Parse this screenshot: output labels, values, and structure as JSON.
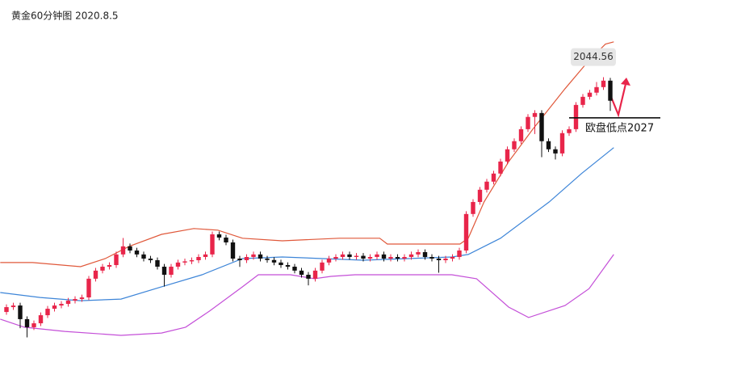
{
  "chart_data": {
    "type": "candlestick",
    "title": "黄金60分钟图 2020.8.5",
    "ylim": [
      1914,
      2078
    ],
    "up_color": "#e8254a",
    "down_color": "#111111",
    "open": [
      1943.0,
      1945.1,
      1945.8,
      1939.9,
      1936.4,
      1938.1,
      1941.6,
      1944.4,
      1945.8,
      1946.5,
      1947.9,
      1948.6,
      1949.3,
      1957.4,
      1960.9,
      1962.6,
      1963.3,
      1967.9,
      1971.4,
      1969.6,
      1967.9,
      1966.1,
      1965.4,
      1962.6,
      1959.1,
      1962.6,
      1964.4,
      1964.9,
      1965.4,
      1966.8,
      1967.9,
      1976.6,
      1975.2,
      1973.1,
      1966.1,
      1965.4,
      1966.8,
      1967.9,
      1966.1,
      1965.5,
      1964.4,
      1963.3,
      1962.6,
      1960.9,
      1959.1,
      1957.4,
      1960.9,
      1964.4,
      1966.1,
      1966.8,
      1967.9,
      1966.8,
      1967.3,
      1966.1,
      1966.8,
      1967.9,
      1966.1,
      1966.8,
      1966.1,
      1966.8,
      1967.9,
      1968.9,
      1966.8,
      1966.1,
      1965.4,
      1966.1,
      1966.8,
      1969.6,
      1985.4,
      1990.6,
      1995.9,
      1999.4,
      2002.9,
      2008.1,
      2013.4,
      2016.9,
      2022.1,
      2027.4,
      2029.1,
      2016.9,
      2013.4,
      2011.6,
      2020.4,
      2022.1,
      2032.6,
      2036.1,
      2037.9,
      2040.3,
      2043.1
    ],
    "high": [
      1946.3,
      1947.0,
      1947.0,
      1941.1,
      1939.3,
      1942.8,
      1945.6,
      1947.0,
      1947.7,
      1949.1,
      1949.8,
      1950.5,
      1958.6,
      1962.1,
      1963.8,
      1964.5,
      1969.1,
      1975.0,
      1972.6,
      1970.8,
      1969.1,
      1967.3,
      1966.6,
      1963.8,
      1963.8,
      1965.6,
      1966.1,
      1966.6,
      1968.0,
      1969.1,
      1977.8,
      1977.8,
      1976.4,
      1974.3,
      1967.3,
      1968.0,
      1969.1,
      1969.1,
      1967.3,
      1966.7,
      1965.6,
      1964.5,
      1963.8,
      1962.1,
      1960.3,
      1962.1,
      1965.6,
      1967.3,
      1968.0,
      1969.1,
      1969.1,
      1968.5,
      1968.5,
      1968.0,
      1969.1,
      1969.1,
      1968.0,
      1968.0,
      1968.0,
      1969.1,
      1970.1,
      1970.1,
      1968.0,
      1967.3,
      1967.3,
      1968.0,
      1970.8,
      1986.6,
      1991.8,
      1997.1,
      2000.6,
      2004.1,
      2009.3,
      2014.6,
      2018.1,
      2023.3,
      2028.6,
      2030.3,
      2030.3,
      2018.1,
      2014.6,
      2021.6,
      2023.3,
      2033.8,
      2037.3,
      2039.1,
      2042.5,
      2044.6,
      2044.3
    ],
    "low": [
      1941.8,
      1943.9,
      1936.0,
      1932.0,
      1935.2,
      1936.9,
      1940.4,
      1943.2,
      1944.6,
      1945.3,
      1946.7,
      1947.4,
      1948.1,
      1956.2,
      1959.7,
      1961.4,
      1962.1,
      1966.7,
      1968.4,
      1966.7,
      1964.9,
      1964.2,
      1961.4,
      1954.0,
      1957.9,
      1961.4,
      1963.2,
      1963.7,
      1964.2,
      1965.6,
      1966.7,
      1974.0,
      1971.9,
      1964.9,
      1962.5,
      1964.2,
      1965.6,
      1964.9,
      1964.3,
      1963.2,
      1962.1,
      1961.4,
      1959.7,
      1957.9,
      1954.5,
      1956.2,
      1959.7,
      1963.2,
      1964.9,
      1965.6,
      1965.6,
      1965.6,
      1964.9,
      1964.9,
      1965.6,
      1964.9,
      1964.9,
      1964.9,
      1964.9,
      1965.6,
      1966.7,
      1965.6,
      1964.9,
      1960.0,
      1964.2,
      1964.9,
      1965.6,
      1968.4,
      1984.2,
      1989.4,
      1994.7,
      1998.2,
      2001.7,
      2006.9,
      2012.2,
      2015.7,
      2020.9,
      2020.0,
      2010.0,
      2012.2,
      2009.0,
      2010.4,
      2019.2,
      2020.9,
      2031.4,
      2034.9,
      2036.7,
      2039.1,
      2030.0
    ],
    "close": [
      1945.1,
      1945.8,
      1939.9,
      1936.4,
      1938.1,
      1941.6,
      1944.4,
      1945.8,
      1946.5,
      1947.9,
      1948.6,
      1949.3,
      1957.4,
      1960.9,
      1962.6,
      1963.3,
      1967.9,
      1971.4,
      1969.6,
      1967.9,
      1966.1,
      1965.4,
      1962.6,
      1959.1,
      1962.6,
      1964.4,
      1964.9,
      1965.4,
      1966.8,
      1967.9,
      1976.6,
      1975.2,
      1973.1,
      1966.1,
      1965.4,
      1966.8,
      1967.9,
      1966.1,
      1965.5,
      1964.4,
      1963.3,
      1962.6,
      1960.9,
      1959.1,
      1957.4,
      1960.9,
      1964.4,
      1966.1,
      1966.8,
      1967.9,
      1966.8,
      1967.3,
      1966.1,
      1966.8,
      1967.9,
      1966.1,
      1966.8,
      1966.1,
      1966.8,
      1967.9,
      1968.9,
      1966.8,
      1966.1,
      1965.4,
      1966.1,
      1966.8,
      1969.6,
      1985.4,
      1990.6,
      1995.9,
      1999.4,
      2002.9,
      2008.1,
      2013.4,
      2016.9,
      2022.1,
      2027.4,
      2029.1,
      2016.9,
      2013.4,
      2011.6,
      2020.4,
      2022.1,
      2032.6,
      2036.1,
      2037.9,
      2040.3,
      2043.1,
      2034.4
    ],
    "bands": [
      {
        "color": "#e0583a",
        "x": [
          -0.9,
          3.8,
          10.8,
          14.4,
          17.9,
          22.6,
          27.3,
          30.8,
          34.4,
          40.2,
          48.5,
          54.4,
          55.5,
          66.1,
          67.3,
          69.6,
          73.2,
          76.7,
          81.4,
          84.9,
          87.3,
          88.5
        ],
        "values": [
          1964.4,
          1964.4,
          1962.6,
          1966.1,
          1971.4,
          1976.6,
          1979.1,
          1978.4,
          1974.9,
          1973.8,
          1974.9,
          1974.9,
          1972.4,
          1972.4,
          1974.9,
          1990.6,
          2008.1,
          2022.1,
          2039.6,
          2051.9,
          2058.9,
          2059.9
        ]
      },
      {
        "color": "#3d85d8",
        "x": [
          -0.9,
          4.9,
          10.8,
          16.7,
          22.6,
          28.5,
          34.4,
          40.2,
          46.1,
          52.0,
          64.9,
          67.3,
          72.0,
          79.1,
          83.8,
          88.5
        ],
        "values": [
          1951.4,
          1949.3,
          1947.9,
          1948.6,
          1953.9,
          1959.1,
          1966.1,
          1966.8,
          1966.1,
          1965.4,
          1966.8,
          1967.9,
          1974.9,
          1990.6,
          2002.9,
          2014.1
        ]
      },
      {
        "color": "#c44fd8",
        "x": [
          -0.9,
          2.6,
          8.5,
          16.7,
          22.6,
          26.1,
          29.6,
          34.4,
          36.7,
          41.4,
          44.9,
          47.3,
          50.8,
          64.9,
          68.5,
          73.2,
          76.1,
          81.4,
          84.9,
          88.5
        ],
        "values": [
          1939.9,
          1936.4,
          1934.6,
          1932.9,
          1933.9,
          1936.4,
          1943.4,
          1953.9,
          1959.1,
          1959.1,
          1957.4,
          1958.4,
          1959.1,
          1959.1,
          1957.4,
          1945.1,
          1940.6,
          1945.8,
          1953.1,
          1967.9
        ]
      }
    ],
    "high_label": {
      "label": "2044.56",
      "value": 2044.56
    },
    "support": {
      "label": "欧盘低点2027",
      "value": 2027
    }
  }
}
